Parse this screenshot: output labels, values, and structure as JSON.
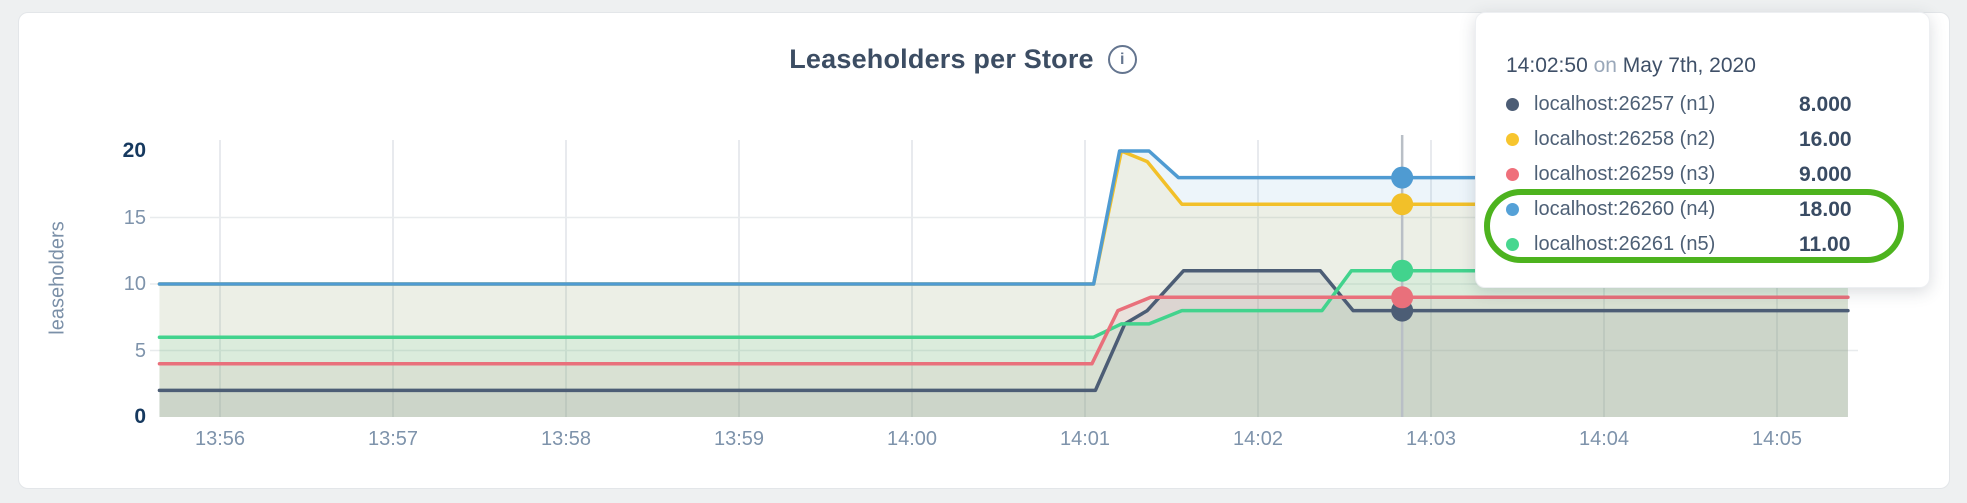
{
  "page": {
    "background": "#eef0f1"
  },
  "header": {
    "title": "Leaseholders per Store",
    "info_icon": "i"
  },
  "chart_data": {
    "type": "line",
    "title": "Leaseholders per Store",
    "ylabel": "leaseholders",
    "xlabel": "",
    "ylim": [
      0,
      20
    ],
    "grid": true,
    "x_tick_labels": [
      "13:56",
      "13:57",
      "13:58",
      "13:59",
      "14:00",
      "14:01",
      "14:02",
      "14:03",
      "14:04",
      "14:05"
    ],
    "y_ticks": [
      {
        "value": 0,
        "bold": true
      },
      {
        "value": 5,
        "bold": false
      },
      {
        "value": 10,
        "bold": false
      },
      {
        "value": 15,
        "bold": false
      },
      {
        "value": 20,
        "bold": true
      }
    ],
    "x_unit": "minutes offset from 13:56",
    "x_range": [
      -0.35,
      9.41
    ],
    "series": [
      {
        "name": "localhost:26257 (n1)",
        "color": "#4c5d75",
        "points": [
          [
            -0.35,
            2
          ],
          [
            5.06,
            2
          ],
          [
            5.23,
            7
          ],
          [
            5.36,
            8
          ],
          [
            5.57,
            11
          ],
          [
            6.36,
            11
          ],
          [
            6.55,
            8
          ],
          [
            9.41,
            8
          ]
        ]
      },
      {
        "name": "localhost:26258 (n2)",
        "color": "#f2c029",
        "points": [
          [
            -0.35,
            10
          ],
          [
            5.05,
            10
          ],
          [
            5.21,
            20
          ],
          [
            5.36,
            19.2
          ],
          [
            5.56,
            16
          ],
          [
            9.41,
            16
          ]
        ]
      },
      {
        "name": "localhost:26259 (n3)",
        "color": "#e9707b",
        "points": [
          [
            -0.35,
            4
          ],
          [
            5.04,
            4
          ],
          [
            5.19,
            8
          ],
          [
            5.38,
            9
          ],
          [
            9.41,
            9
          ]
        ]
      },
      {
        "name": "localhost:26260 (n4)",
        "color": "#4f9bd2",
        "points": [
          [
            -0.35,
            10
          ],
          [
            5.05,
            10
          ],
          [
            5.2,
            20
          ],
          [
            5.37,
            20
          ],
          [
            5.54,
            18
          ],
          [
            9.41,
            18
          ]
        ]
      },
      {
        "name": "localhost:26261 (n5)",
        "color": "#42d38d",
        "points": [
          [
            -0.35,
            6
          ],
          [
            5.05,
            6
          ],
          [
            5.21,
            7
          ],
          [
            5.37,
            7
          ],
          [
            5.56,
            8
          ],
          [
            6.37,
            8
          ],
          [
            6.54,
            11
          ],
          [
            9.41,
            11
          ]
        ]
      }
    ],
    "draw_order": [
      0,
      4,
      2,
      1,
      3
    ],
    "hover": {
      "time_offset_min": 6.8333,
      "marker_radius": 11,
      "line_color": "#b9bfc6"
    }
  },
  "tooltip": {
    "time": "14:02:50",
    "on_word": "on",
    "date": "May 7th, 2020",
    "rows": [
      {
        "label": "localhost:26257 (n1)",
        "value": "8.000",
        "color": "#4c5d75"
      },
      {
        "label": "localhost:26258 (n2)",
        "value": "16.00",
        "color": "#f7c52e"
      },
      {
        "label": "localhost:26259 (n3)",
        "value": "9.000",
        "color": "#ef707b"
      },
      {
        "label": "localhost:26260 (n4)",
        "value": "18.00",
        "color": "#55a1d7"
      },
      {
        "label": "localhost:26261 (n5)",
        "value": "11.00",
        "color": "#47d78f"
      }
    ],
    "highlighted_rows": [
      3,
      4
    ],
    "highlight_color": "#4db31e"
  }
}
